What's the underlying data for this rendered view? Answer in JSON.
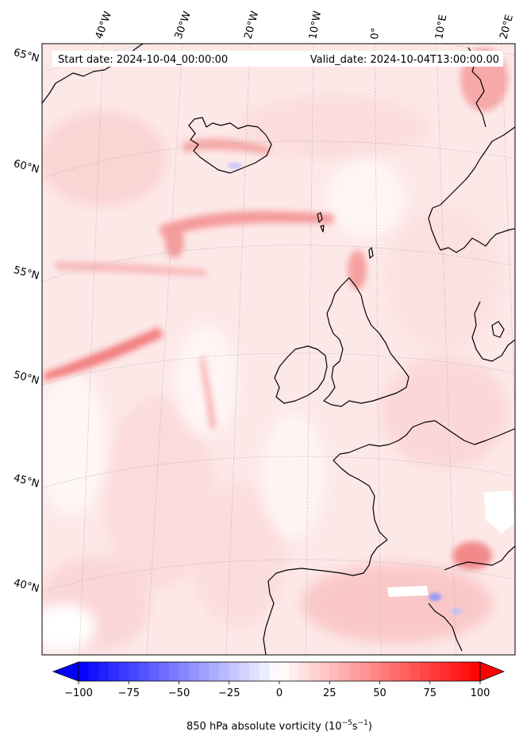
{
  "map": {
    "start_label": "Start date: 2024-10-04_00:00:00",
    "valid_label": "Valid_date: 2024-10-04T13:00:00.00",
    "lon_labels": [
      "40°W",
      "30°W",
      "20°W",
      "10°W",
      "0°",
      "10°E",
      "20°E"
    ],
    "lat_labels": [
      "65°N",
      "60°N",
      "55°N",
      "50°N",
      "45°N",
      "40°N"
    ],
    "colors": {
      "negative": "#0000ff",
      "neutral": "#ffffff",
      "positive": "#ff0000",
      "coast": "#000000",
      "gridline": "#aaaaaa"
    }
  },
  "colorbar": {
    "min": -100,
    "max": 100,
    "ticks": [
      "−100",
      "−75",
      "−50",
      "−25",
      "0",
      "25",
      "50",
      "75",
      "100"
    ],
    "label": "850 hPa absolute vorticity (10",
    "label_exp1": "−5",
    "label_mid": "s",
    "label_exp2": "−1",
    "label_end": ")",
    "extend": "both"
  }
}
